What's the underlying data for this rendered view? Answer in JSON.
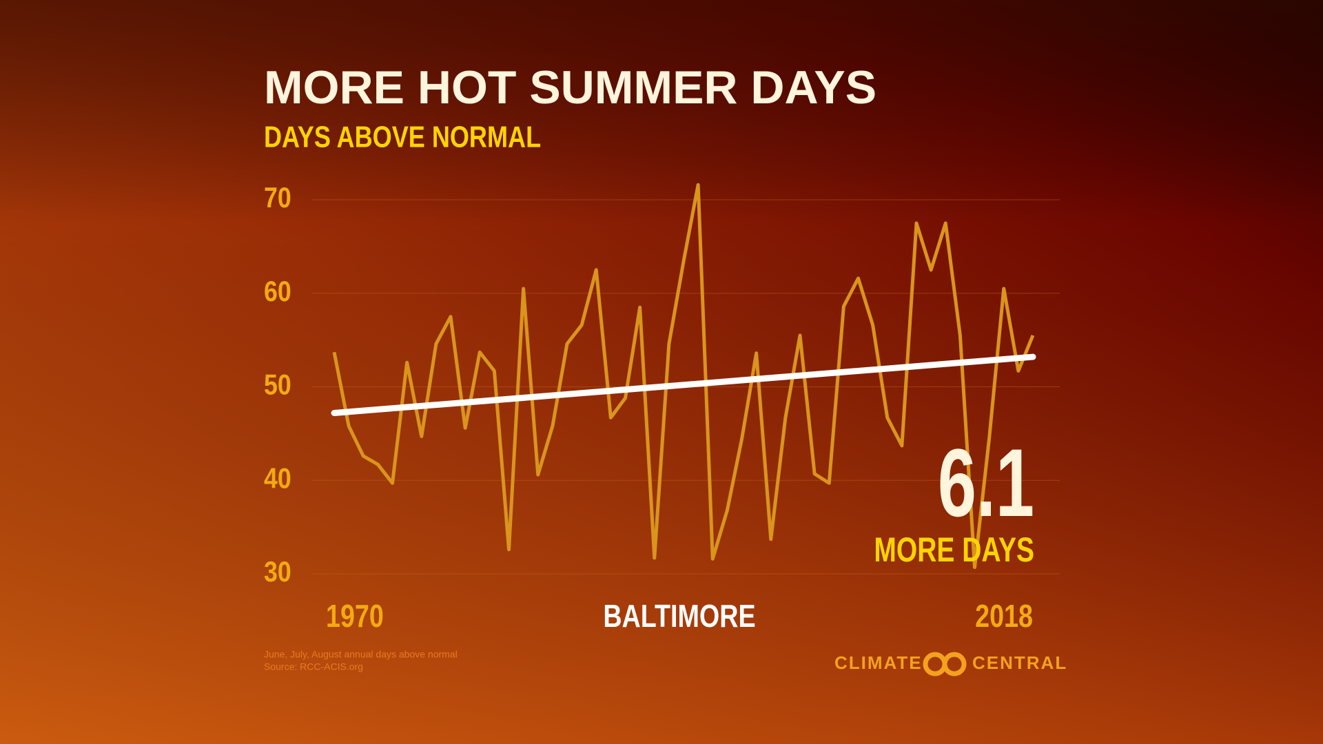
{
  "chart_data": {
    "type": "line",
    "title": "MORE HOT SUMMER DAYS",
    "subtitle": "DAYS ABOVE NORMAL",
    "location": "BALTIMORE",
    "annotation": {
      "value": "6.1",
      "label": "MORE DAYS"
    },
    "notes": [
      "June, July, August annual days above normal",
      "Source: RCC-ACIS.org"
    ],
    "logo": [
      "CLIMATE",
      "CENTRAL"
    ],
    "x": [
      1970,
      1971,
      1972,
      1973,
      1974,
      1975,
      1976,
      1977,
      1978,
      1979,
      1980,
      1981,
      1982,
      1983,
      1984,
      1985,
      1986,
      1987,
      1988,
      1989,
      1990,
      1991,
      1992,
      1993,
      1994,
      1995,
      1996,
      1997,
      1998,
      1999,
      2000,
      2001,
      2002,
      2003,
      2004,
      2005,
      2006,
      2007,
      2008,
      2009,
      2010,
      2011,
      2012,
      2013,
      2014,
      2015,
      2016,
      2017,
      2018
    ],
    "series": [
      {
        "color": "#d9951c",
        "values": [
          53.7,
          45.8,
          42.6,
          41.7,
          39.7,
          52.6,
          44.7,
          54.6,
          57.5,
          45.6,
          53.7,
          51.7,
          32.6,
          60.5,
          40.6,
          45.8,
          54.6,
          56.6,
          62.5,
          46.7,
          48.8,
          58.5,
          31.7,
          54.6,
          63.4,
          71.6,
          31.6,
          36.8,
          44.4,
          53.6,
          33.7,
          46.7,
          55.5,
          40.7,
          39.7,
          58.6,
          61.6,
          56.6,
          46.7,
          43.7,
          67.5,
          62.5,
          67.5,
          55.5,
          30.7,
          44.5,
          60.5,
          51.7,
          55.5
        ]
      }
    ],
    "trend": {
      "color": "#ffffff",
      "x": [
        1970,
        2018
      ],
      "values": [
        47.2,
        53.2
      ]
    },
    "xlim": [
      1970,
      2018
    ],
    "xticks": [
      1970,
      2018
    ],
    "ylim": [
      30,
      70
    ],
    "yticks": [
      30,
      40,
      50,
      60,
      70
    ],
    "grid": true
  }
}
